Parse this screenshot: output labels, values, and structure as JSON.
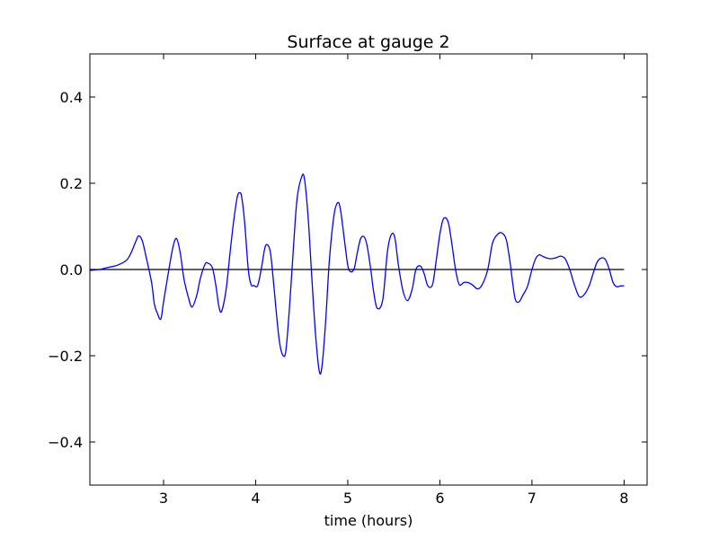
{
  "chart_data": {
    "type": "line",
    "title": "Surface at gauge 2",
    "xlabel": "time (hours)",
    "ylabel": "",
    "xlim": [
      2.2,
      8.25
    ],
    "ylim": [
      -0.5,
      0.5
    ],
    "x_ticks": [
      3,
      4,
      5,
      6,
      7,
      8
    ],
    "x_tick_labels": [
      "3",
      "4",
      "5",
      "6",
      "7",
      "8"
    ],
    "y_ticks": [
      -0.4,
      -0.2,
      0.0,
      0.2,
      0.4
    ],
    "y_tick_labels": [
      "−0.4",
      "−0.2",
      "0.0",
      "0.2",
      "0.4"
    ],
    "grid": false,
    "legend": "none",
    "reference_line": {
      "y": 0.0,
      "x_range": [
        2.2,
        8.0
      ],
      "color": "#000000"
    },
    "series": [
      {
        "color": "#0000ff",
        "x": [
          2.2,
          2.3,
          2.4,
          2.5,
          2.6,
          2.65,
          2.7,
          2.73,
          2.77,
          2.82,
          2.87,
          2.9,
          2.93,
          2.97,
          3.0,
          3.05,
          3.1,
          3.14,
          3.18,
          3.22,
          3.27,
          3.31,
          3.36,
          3.4,
          3.45,
          3.48,
          3.53,
          3.57,
          3.6,
          3.63,
          3.68,
          3.72,
          3.76,
          3.8,
          3.83,
          3.85,
          3.88,
          3.92,
          3.95,
          3.98,
          4.02,
          4.06,
          4.1,
          4.13,
          4.16,
          4.19,
          4.22,
          4.26,
          4.3,
          4.33,
          4.37,
          4.41,
          4.45,
          4.5,
          4.53,
          4.57,
          4.61,
          4.65,
          4.69,
          4.72,
          4.76,
          4.8,
          4.85,
          4.89,
          4.92,
          4.96,
          5.0,
          5.03,
          5.07,
          5.1,
          5.14,
          5.18,
          5.21,
          5.25,
          5.28,
          5.32,
          5.38,
          5.43,
          5.47,
          5.51,
          5.55,
          5.6,
          5.65,
          5.7,
          5.74,
          5.79,
          5.83,
          5.87,
          5.92,
          5.96,
          6.0,
          6.04,
          6.09,
          6.13,
          6.17,
          6.21,
          6.26,
          6.3,
          6.35,
          6.41,
          6.46,
          6.52,
          6.57,
          6.62,
          6.67,
          6.72,
          6.76,
          6.79,
          6.82,
          6.86,
          6.9,
          6.95,
          7.0,
          7.04,
          7.08,
          7.12,
          7.17,
          7.21,
          7.26,
          7.31,
          7.36,
          7.41,
          7.46,
          7.51,
          7.56,
          7.62,
          7.67,
          7.71,
          7.76,
          7.8,
          7.84,
          7.88,
          7.92,
          7.96,
          8.0
        ],
        "y": [
          -0.002,
          0.0,
          0.005,
          0.01,
          0.022,
          0.04,
          0.066,
          0.078,
          0.066,
          0.02,
          -0.03,
          -0.08,
          -0.1,
          -0.115,
          -0.075,
          -0.01,
          0.05,
          0.072,
          0.04,
          -0.02,
          -0.065,
          -0.087,
          -0.06,
          -0.02,
          0.012,
          0.015,
          0.004,
          -0.04,
          -0.085,
          -0.097,
          -0.045,
          0.035,
          0.11,
          0.168,
          0.178,
          0.166,
          0.11,
          0.0,
          -0.035,
          -0.037,
          -0.038,
          0.0,
          0.05,
          0.057,
          0.04,
          -0.02,
          -0.09,
          -0.17,
          -0.2,
          -0.185,
          -0.08,
          0.05,
          0.165,
          0.215,
          0.21,
          0.12,
          -0.02,
          -0.15,
          -0.235,
          -0.225,
          -0.12,
          0.02,
          0.125,
          0.155,
          0.14,
          0.075,
          0.01,
          -0.005,
          0.002,
          0.035,
          0.072,
          0.075,
          0.055,
          0.0,
          -0.05,
          -0.09,
          -0.07,
          0.04,
          0.08,
          0.075,
          0.01,
          -0.05,
          -0.072,
          -0.045,
          0.0,
          0.008,
          -0.01,
          -0.038,
          -0.035,
          0.02,
          0.082,
          0.118,
          0.11,
          0.06,
          0.0,
          -0.035,
          -0.03,
          -0.03,
          -0.035,
          -0.045,
          -0.035,
          0.0,
          0.06,
          0.08,
          0.085,
          0.07,
          0.02,
          -0.03,
          -0.07,
          -0.075,
          -0.06,
          -0.04,
          0.0,
          0.025,
          0.034,
          0.03,
          0.026,
          0.025,
          0.027,
          0.031,
          0.025,
          0.0,
          -0.035,
          -0.062,
          -0.06,
          -0.038,
          -0.005,
          0.018,
          0.027,
          0.022,
          0.0,
          -0.03,
          -0.04,
          -0.038,
          -0.038
        ]
      }
    ]
  }
}
